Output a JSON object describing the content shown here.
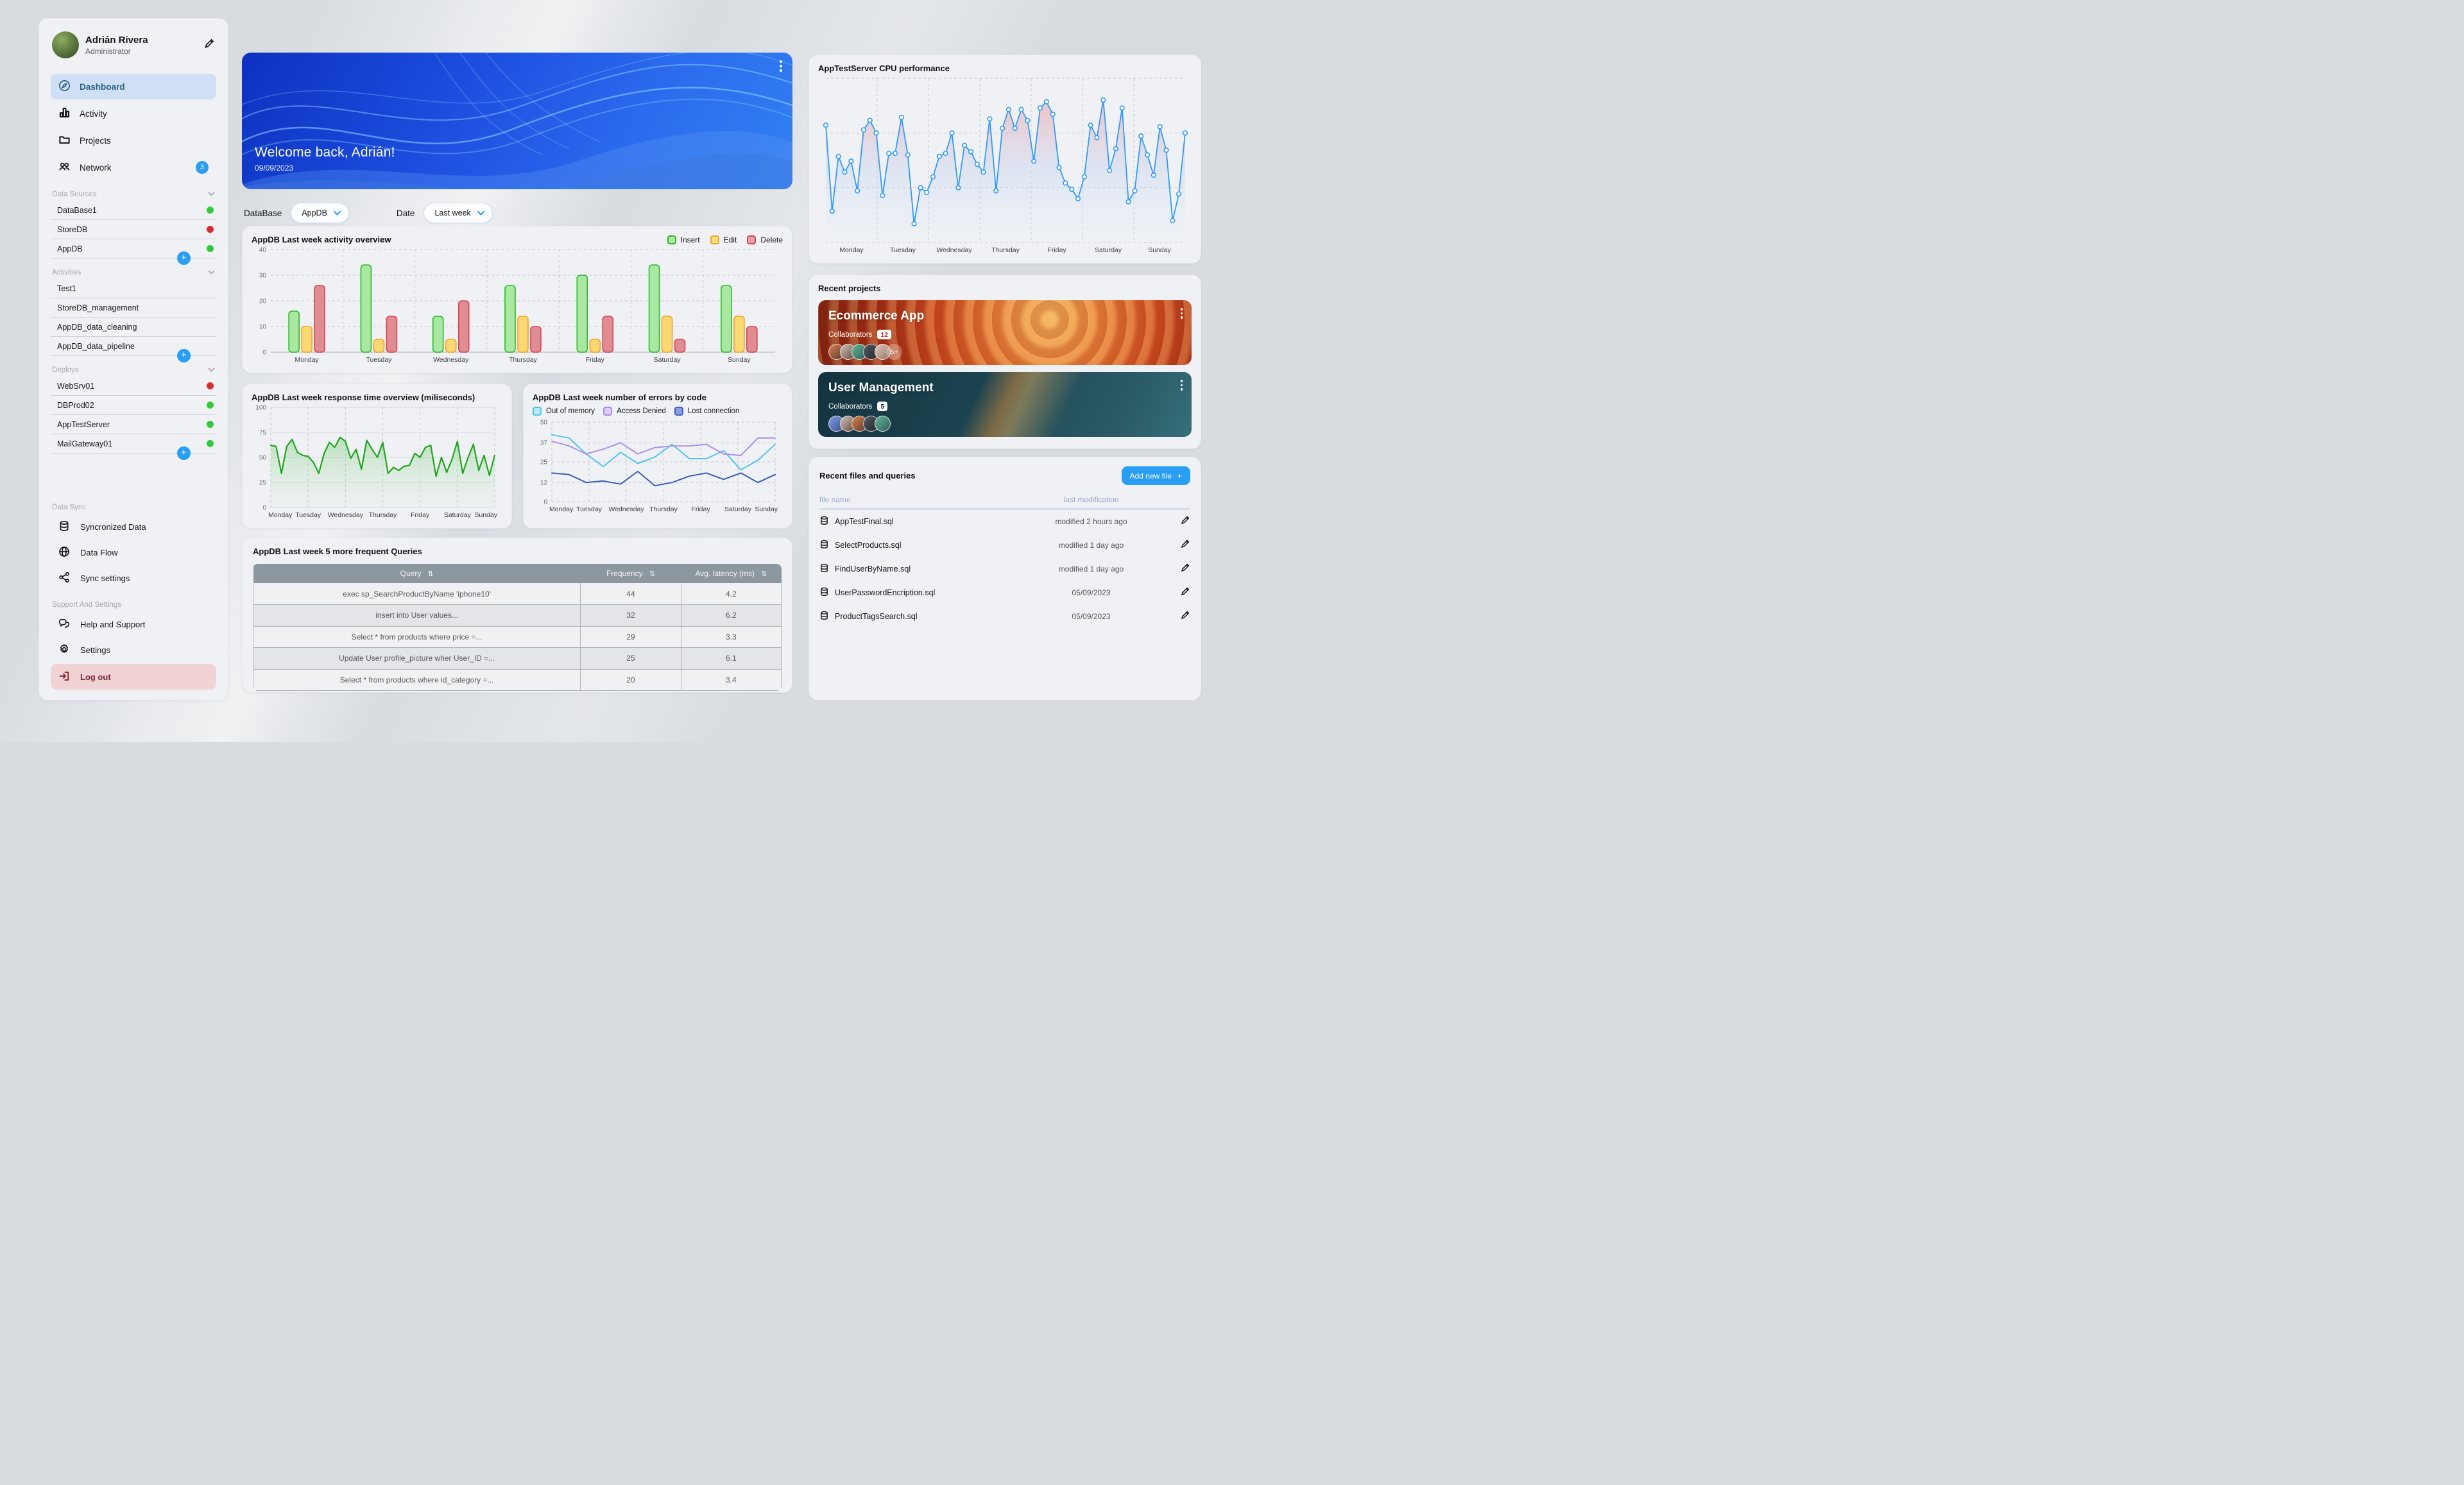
{
  "sidebar": {
    "profile": {
      "name": "Adrián Rivera",
      "role": "Administrator"
    },
    "nav": [
      {
        "label": "Dashboard",
        "active": true
      },
      {
        "label": "Activity"
      },
      {
        "label": "Projects"
      },
      {
        "label": "Network",
        "badge": "3"
      }
    ],
    "sections": [
      {
        "title": "Data Sources",
        "items": [
          {
            "label": "DataBase1",
            "status": "green"
          },
          {
            "label": "StoreDB",
            "status": "red"
          },
          {
            "label": "AppDB",
            "status": "green"
          }
        ]
      },
      {
        "title": "Activities",
        "items": [
          {
            "label": "Test1"
          },
          {
            "label": "StoreDB_management"
          },
          {
            "label": "AppDB_data_cleaning"
          },
          {
            "label": "AppDB_data_pipeline"
          }
        ]
      },
      {
        "title": "Deploys",
        "items": [
          {
            "label": "WebSrv01",
            "status": "red"
          },
          {
            "label": "DBProd02",
            "status": "green"
          },
          {
            "label": "AppTestServer",
            "status": "green"
          },
          {
            "label": "MailGateway01",
            "status": "green"
          }
        ]
      }
    ],
    "data_sync": {
      "title": "Data Sync",
      "items": [
        {
          "label": "Syncronized Data"
        },
        {
          "label": "Data Flow"
        },
        {
          "label": "Sync settings"
        }
      ]
    },
    "support": {
      "title": "Support And Settings",
      "items": [
        {
          "label": "Help and Support"
        },
        {
          "label": "Settings"
        },
        {
          "label": "Log out"
        }
      ]
    }
  },
  "main": {
    "banner": {
      "title": "Welcome back, Adrián!",
      "date": "09/09/2023"
    },
    "filters": {
      "database_label": "DataBase",
      "database_value": "AppDB",
      "date_label": "Date",
      "date_value": "Last week"
    },
    "queries_table": {
      "title": "AppDB Last week 5 more frequent Queries",
      "columns": [
        "Query",
        "Frequency",
        "Avg. latency (ms)"
      ],
      "sort_icon": "⇅",
      "rows": [
        [
          "exec sp_SearchProductByName 'iphone10'",
          "44",
          "4.2"
        ],
        [
          "insert into User values...",
          "32",
          "6.2"
        ],
        [
          "Select * from products where price =...",
          "29",
          "3.3"
        ],
        [
          "Update User profile_picture wher User_ID =...",
          "25",
          "6.1"
        ],
        [
          "Select * from products where id_category =...",
          "20",
          "3.4"
        ]
      ]
    }
  },
  "right": {
    "projects": {
      "title": "Recent projects",
      "cards": [
        {
          "name": "Ecommerce App",
          "collaborators_label": "Collaborators",
          "count": "12",
          "overflow": "5+"
        },
        {
          "name": "User Management",
          "collaborators_label": "Collaborators",
          "count": "5"
        }
      ]
    },
    "files": {
      "title": "Recent files and queries",
      "add_button": "Add new file",
      "add_icon": "+",
      "columns": [
        "file name",
        "last modification"
      ],
      "rows": [
        [
          "AppTestFinal.sql",
          "modified 2 hours ago"
        ],
        [
          "SelectProducts.sql",
          "modified 1 day ago"
        ],
        [
          "FindUserByName.sql",
          "modified 1 day ago"
        ],
        [
          "UserPasswordEncription.sql",
          "05/09/2023"
        ],
        [
          "ProductTagsSearch.sql",
          "05/09/2023"
        ]
      ]
    }
  },
  "chart_data": [
    {
      "type": "bar",
      "title": "AppDB Last week activity overview",
      "categories": [
        "Monday",
        "Tuesday",
        "Wednesday",
        "Thursday",
        "Friday",
        "Saturday",
        "Sunday"
      ],
      "series": [
        {
          "name": "Insert",
          "fill": "#a9e8a0",
          "stroke": "#2db52d",
          "values": [
            16,
            34,
            14,
            26,
            30,
            34,
            26
          ]
        },
        {
          "name": "Edit",
          "fill": "#fad974",
          "stroke": "#f0a41e",
          "values": [
            10,
            5,
            5,
            14,
            5,
            14,
            14
          ]
        },
        {
          "name": "Delete",
          "fill": "#df8d92",
          "stroke": "#d8444e",
          "values": [
            26,
            14,
            20,
            10,
            14,
            5,
            10
          ]
        }
      ],
      "ylim": [
        0,
        40
      ],
      "yticks": [
        0,
        10,
        20,
        30,
        40
      ],
      "grid": "dashed",
      "legend_position": "top-right"
    },
    {
      "type": "area",
      "title": "AppDB Last week response time overview (miliseconds)",
      "x_labels": [
        "Monday",
        "Tuesday",
        "Wednesday",
        "Thursday",
        "Friday",
        "Saturday",
        "Sunday"
      ],
      "color": "#1fa51f",
      "values": [
        62,
        61,
        34,
        61,
        68,
        55,
        52,
        51,
        45,
        34,
        54,
        65,
        60,
        70,
        66,
        49,
        58,
        38,
        67,
        58,
        50,
        65,
        34,
        40,
        37,
        41,
        42,
        54,
        50,
        60,
        62,
        31,
        50,
        35,
        48,
        66,
        34,
        50,
        63,
        37,
        52,
        32,
        52
      ],
      "ylim": [
        0,
        100
      ],
      "yticks": [
        0,
        25,
        50,
        75,
        100
      ]
    },
    {
      "type": "line",
      "title": "AppDB Last week number of errors by code",
      "x_labels": [
        "Monday",
        "Tuesday",
        "Wednesday",
        "Thursday",
        "Friday",
        "Saturday",
        "Sunday"
      ],
      "series": [
        {
          "name": "Out of memory",
          "color": "#52c5ea",
          "values": [
            42,
            40,
            30,
            22,
            31,
            24,
            28,
            36,
            27,
            27,
            32,
            20,
            26,
            36
          ]
        },
        {
          "name": "Access Denied",
          "color": "#ad8fe9",
          "values": [
            38,
            35,
            30,
            33,
            37,
            30,
            34,
            35,
            35,
            36,
            30,
            29,
            40,
            40
          ]
        },
        {
          "name": "Lost connection",
          "color": "#3a5cb5",
          "values": [
            18,
            17,
            12,
            13,
            11,
            19,
            10,
            12,
            16,
            18,
            14,
            18,
            12,
            17
          ]
        }
      ],
      "ylim": [
        0,
        50
      ],
      "yticks": [
        0,
        12,
        25,
        37,
        50
      ],
      "legend_position": "top-left"
    },
    {
      "type": "line-markers",
      "title": "AppTestServer CPU performance",
      "x_labels": [
        "Monday",
        "Tuesday",
        "Wednesday",
        "Thursday",
        "Friday",
        "Saturday",
        "Sunday"
      ],
      "color": "#2e9bf5",
      "values": [
        75,
        20,
        55,
        45,
        52,
        33,
        72,
        78,
        70,
        30,
        57,
        57,
        80,
        56,
        12,
        35,
        32,
        42,
        55,
        57,
        70,
        35,
        62,
        58,
        50,
        45,
        79,
        33,
        73,
        85,
        73,
        85,
        78,
        52,
        86,
        90,
        82,
        48,
        38,
        34,
        28,
        42,
        75,
        67,
        91,
        46,
        60,
        86,
        26,
        33,
        68,
        56,
        43,
        74,
        59,
        14,
        31,
        70
      ],
      "ylim": [
        0,
        100
      ]
    }
  ]
}
